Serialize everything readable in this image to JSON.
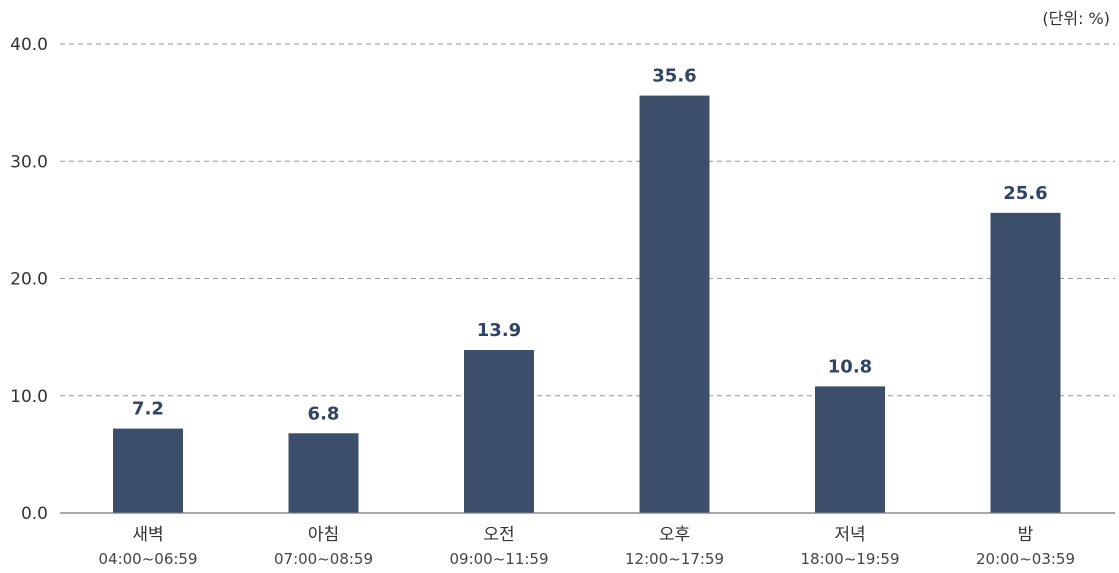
{
  "chart_data": {
    "type": "bar",
    "unit_label": "(단위: %)",
    "categories": [
      "새벽",
      "아침",
      "오전",
      "오후",
      "저녁",
      "밤"
    ],
    "category_sublabels": [
      "04:00~06:59",
      "07:00~08:59",
      "09:00~11:59",
      "12:00~17:59",
      "18:00~19:59",
      "20:00~03:59"
    ],
    "values": [
      7.2,
      6.8,
      13.9,
      35.6,
      10.8,
      25.6
    ],
    "value_labels": [
      "7.2",
      "6.8",
      "13.9",
      "35.6",
      "10.8",
      "25.6"
    ],
    "yticks": [
      "0.0",
      "10.0",
      "20.0",
      "30.0",
      "40.0"
    ],
    "ylim": [
      0,
      40
    ],
    "grid": true,
    "bar_color": "#3b4f6b",
    "value_label_color": "#2f4466"
  }
}
